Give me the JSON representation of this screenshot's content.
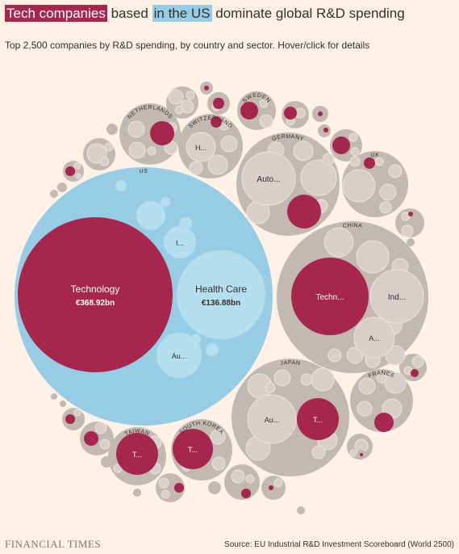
{
  "header": {
    "title_part1": "Tech companies",
    "title_part2": " based ",
    "title_part3": "in the US",
    "title_part4": " dominate global R&D spending",
    "subtitle": "Top 2,500 companies by R&D spending, by country and sector. Hover/click for details"
  },
  "footer": {
    "logo": "FINANCIAL TIMES",
    "source": "Source: EU Industrial R&D Investment Scoreboard (World 2500)"
  },
  "colors": {
    "background": "#fff1e5",
    "technology": "#a6264e",
    "us_country": "#96cce4",
    "us_sector": "#b5deee",
    "country": "#c3b9b3",
    "sector": "#d8cfca",
    "stroke": "#ede3dc"
  },
  "chart_data": {
    "type": "packed-bubble",
    "hierarchy": "country > sector",
    "highlight_sector": "Technology",
    "countries": [
      {
        "name": "US",
        "label": "US",
        "sectors": [
          {
            "name": "Technology",
            "label": "Technology",
            "value": "€368.92bn"
          },
          {
            "name": "Health Care",
            "label": "Health Care",
            "value": "€136.88bn"
          },
          {
            "name": "",
            "label": "Au..."
          },
          {
            "name": "",
            "label": "I..."
          }
        ]
      },
      {
        "name": "China",
        "label": "CHINA",
        "sectors": [
          {
            "name": "Technology",
            "label": "Techn..."
          },
          {
            "name": "",
            "label": "Ind..."
          },
          {
            "name": "",
            "label": "A..."
          }
        ]
      },
      {
        "name": "Japan",
        "label": "JAPAN",
        "sectors": [
          {
            "name": "Technology",
            "label": "T..."
          },
          {
            "name": "",
            "label": "Au..."
          }
        ]
      },
      {
        "name": "Germany",
        "label": "GERMANY",
        "sectors": [
          {
            "name": "",
            "label": "Auto..."
          }
        ]
      },
      {
        "name": "Switzerland",
        "label": "SWITZERLAND",
        "sectors": [
          {
            "name": "",
            "label": "H..."
          }
        ]
      },
      {
        "name": "UK",
        "label": "UK",
        "sectors": []
      },
      {
        "name": "France",
        "label": "FRANCE",
        "sectors": []
      },
      {
        "name": "Netherlands",
        "label": "NETHERLANDS",
        "sectors": []
      },
      {
        "name": "Sweden",
        "label": "SWEDEN",
        "sectors": []
      },
      {
        "name": "South Korea",
        "label": "SOUTH KOREA",
        "sectors": [
          {
            "name": "Technology",
            "label": "T..."
          }
        ]
      },
      {
        "name": "Taiwan",
        "label": "TAIWAN",
        "sectors": [
          {
            "name": "Technology",
            "label": "T..."
          }
        ]
      }
    ]
  }
}
